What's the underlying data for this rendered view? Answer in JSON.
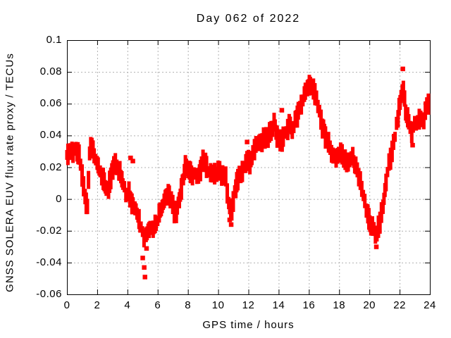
{
  "chart_data": {
    "type": "scatter",
    "title": "Day 062 of 2022",
    "xlabel": "GPS time / hours",
    "ylabel": "GNSS SOLERA EUV flux rate proxy / TECUs",
    "xlim": [
      0,
      24
    ],
    "ylim": [
      -0.06,
      0.1
    ],
    "grid": true,
    "legend": "none",
    "point_color": "#ff0000",
    "grid_color": "#b0b0b0",
    "border_color": "#000000",
    "xticks": [
      {
        "v": 0,
        "label": "0"
      },
      {
        "v": 2,
        "label": "2"
      },
      {
        "v": 4,
        "label": "4"
      },
      {
        "v": 6,
        "label": "6"
      },
      {
        "v": 8,
        "label": "8"
      },
      {
        "v": 10,
        "label": "10"
      },
      {
        "v": 12,
        "label": "12"
      },
      {
        "v": 14,
        "label": "14"
      },
      {
        "v": 16,
        "label": "16"
      },
      {
        "v": 18,
        "label": "18"
      },
      {
        "v": 20,
        "label": "20"
      },
      {
        "v": 22,
        "label": "22"
      },
      {
        "v": 24,
        "label": "24"
      }
    ],
    "yticks": [
      {
        "v": 0.1,
        "label": "0.1"
      },
      {
        "v": 0.08,
        "label": "0.08"
      },
      {
        "v": 0.06,
        "label": "0.06"
      },
      {
        "v": 0.04,
        "label": "0.04"
      },
      {
        "v": 0.02,
        "label": "0.02"
      },
      {
        "v": 0,
        "label": "0"
      },
      {
        "v": -0.02,
        "label": "-0.02"
      },
      {
        "v": -0.04,
        "label": "-0.04"
      },
      {
        "v": -0.06,
        "label": "-0.06"
      }
    ],
    "band_halfwidth": 0.007,
    "series": [
      {
        "name": "EUV flux rate proxy",
        "points": [
          [
            0.0,
            0.026
          ],
          [
            0.2,
            0.029
          ],
          [
            0.4,
            0.03
          ],
          [
            0.6,
            0.031
          ],
          [
            0.8,
            0.029
          ],
          [
            1.0,
            0.014
          ],
          [
            1.2,
            0.002
          ],
          [
            1.35,
            -0.004
          ],
          [
            1.5,
            0.03
          ],
          [
            1.65,
            0.034
          ],
          [
            1.8,
            0.027
          ],
          [
            2.0,
            0.022
          ],
          [
            2.2,
            0.018
          ],
          [
            2.4,
            0.012
          ],
          [
            2.6,
            0.007
          ],
          [
            2.75,
            0.006
          ],
          [
            2.9,
            0.014
          ],
          [
            3.1,
            0.022
          ],
          [
            3.3,
            0.02
          ],
          [
            3.5,
            0.017
          ],
          [
            3.7,
            0.01
          ],
          [
            3.9,
            0.003
          ],
          [
            4.1,
            0.003
          ],
          [
            4.3,
            -0.002
          ],
          [
            4.5,
            -0.006
          ],
          [
            4.7,
            -0.012
          ],
          [
            4.9,
            -0.019
          ],
          [
            5.1,
            -0.024
          ],
          [
            5.3,
            -0.022
          ],
          [
            5.5,
            -0.018
          ],
          [
            5.7,
            -0.02
          ],
          [
            5.9,
            -0.016
          ],
          [
            6.1,
            -0.01
          ],
          [
            6.3,
            -0.005
          ],
          [
            6.5,
            0.0
          ],
          [
            6.7,
            0.002
          ],
          [
            6.9,
            -0.002
          ],
          [
            7.1,
            -0.008
          ],
          [
            7.3,
            -0.006
          ],
          [
            7.5,
            0.004
          ],
          [
            7.7,
            0.014
          ],
          [
            7.9,
            0.022
          ],
          [
            8.1,
            0.017
          ],
          [
            8.3,
            0.015
          ],
          [
            8.5,
            0.016
          ],
          [
            8.7,
            0.015
          ],
          [
            8.9,
            0.021
          ],
          [
            9.1,
            0.024
          ],
          [
            9.3,
            0.016
          ],
          [
            9.5,
            0.015
          ],
          [
            9.7,
            0.016
          ],
          [
            9.9,
            0.017
          ],
          [
            10.1,
            0.016
          ],
          [
            10.3,
            0.015
          ],
          [
            10.5,
            0.013
          ],
          [
            10.7,
            -0.004
          ],
          [
            10.9,
            -0.009
          ],
          [
            11.1,
            0.005
          ],
          [
            11.3,
            0.012
          ],
          [
            11.5,
            0.016
          ],
          [
            11.7,
            0.019
          ],
          [
            11.9,
            0.025
          ],
          [
            12.1,
            0.022
          ],
          [
            12.3,
            0.028
          ],
          [
            12.5,
            0.033
          ],
          [
            12.7,
            0.036
          ],
          [
            12.9,
            0.037
          ],
          [
            13.1,
            0.038
          ],
          [
            13.3,
            0.039
          ],
          [
            13.5,
            0.043
          ],
          [
            13.7,
            0.047
          ],
          [
            13.9,
            0.04
          ],
          [
            14.1,
            0.036
          ],
          [
            14.3,
            0.038
          ],
          [
            14.5,
            0.043
          ],
          [
            14.7,
            0.046
          ],
          [
            14.9,
            0.044
          ],
          [
            15.1,
            0.049
          ],
          [
            15.3,
            0.055
          ],
          [
            15.5,
            0.06
          ],
          [
            15.7,
            0.065
          ],
          [
            15.9,
            0.07
          ],
          [
            16.1,
            0.073
          ],
          [
            16.3,
            0.069
          ],
          [
            16.5,
            0.062
          ],
          [
            16.7,
            0.055
          ],
          [
            16.9,
            0.046
          ],
          [
            17.1,
            0.04
          ],
          [
            17.3,
            0.034
          ],
          [
            17.5,
            0.03
          ],
          [
            17.7,
            0.026
          ],
          [
            17.9,
            0.028
          ],
          [
            18.1,
            0.029
          ],
          [
            18.3,
            0.025
          ],
          [
            18.5,
            0.022
          ],
          [
            18.7,
            0.024
          ],
          [
            18.9,
            0.027
          ],
          [
            19.1,
            0.02
          ],
          [
            19.3,
            0.014
          ],
          [
            19.5,
            0.006
          ],
          [
            19.7,
            -0.002
          ],
          [
            19.9,
            -0.01
          ],
          [
            20.1,
            -0.016
          ],
          [
            20.3,
            -0.02
          ],
          [
            20.5,
            -0.022
          ],
          [
            20.7,
            -0.015
          ],
          [
            20.9,
            -0.005
          ],
          [
            21.1,
            0.01
          ],
          [
            21.3,
            0.022
          ],
          [
            21.5,
            0.03
          ],
          [
            21.7,
            0.04
          ],
          [
            21.9,
            0.052
          ],
          [
            22.1,
            0.065
          ],
          [
            22.25,
            0.071
          ],
          [
            22.4,
            0.055
          ],
          [
            22.6,
            0.048
          ],
          [
            22.8,
            0.04
          ],
          [
            23.0,
            0.047
          ],
          [
            23.2,
            0.05
          ],
          [
            23.4,
            0.052
          ],
          [
            23.6,
            0.05
          ],
          [
            23.8,
            0.058
          ],
          [
            24.0,
            0.062
          ]
        ],
        "outliers": [
          [
            4.2,
            0.026
          ],
          [
            4.35,
            0.024
          ],
          [
            5.0,
            -0.037
          ],
          [
            5.1,
            -0.043
          ],
          [
            5.15,
            -0.049
          ],
          [
            5.25,
            -0.031
          ],
          [
            10.75,
            -0.013
          ],
          [
            10.85,
            -0.016
          ],
          [
            11.9,
            0.036
          ],
          [
            14.2,
            0.056
          ],
          [
            20.45,
            -0.03
          ],
          [
            22.2,
            0.082
          ],
          [
            22.85,
            0.034
          ]
        ]
      }
    ]
  }
}
